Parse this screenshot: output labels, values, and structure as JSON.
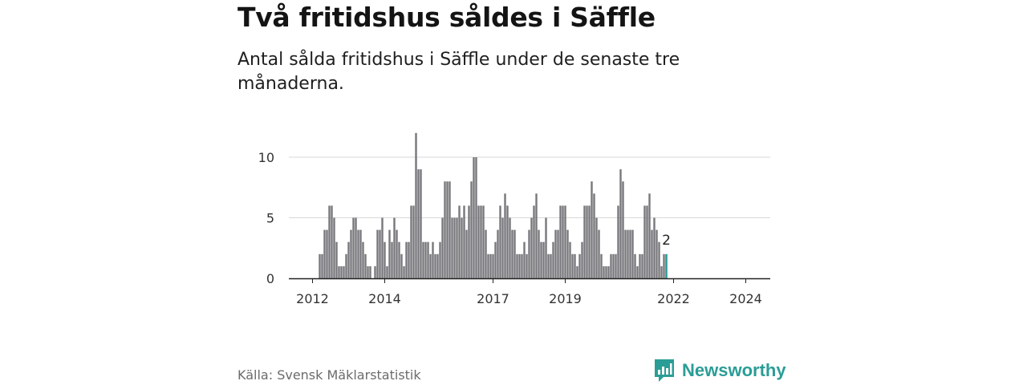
{
  "header": {
    "title": "Två fritidshus såldes i Säffle",
    "subtitle": "Antal sålda fritidshus i Säffle under de senaste tre månaderna."
  },
  "footer": {
    "source": "Källa: Svensk Mäklarstatistik",
    "brand": "Newsworthy"
  },
  "colors": {
    "bar": "#77777c",
    "highlight": "#2a9d96",
    "grid": "#d9d9d9",
    "axis": "#222222"
  },
  "chart_data": {
    "type": "bar",
    "title": "Antal sålda fritidshus i Säffle",
    "xlabel": "",
    "ylabel": "",
    "ylim": [
      0,
      12
    ],
    "yticks": [
      0,
      5,
      10
    ],
    "xtick_labels": [
      "2012",
      "2014",
      "2017",
      "2019",
      "2022",
      "2024"
    ],
    "xtick_periods": [
      0,
      30,
      75,
      105,
      150,
      180
    ],
    "first_bar_period": 3,
    "values": [
      2,
      2,
      4,
      4,
      6,
      6,
      5,
      3,
      1,
      1,
      1,
      2,
      3,
      4,
      5,
      5,
      4,
      4,
      3,
      2,
      1,
      1,
      0,
      1,
      4,
      4,
      5,
      3,
      1,
      4,
      3,
      5,
      4,
      3,
      2,
      1,
      3,
      3,
      6,
      6,
      12,
      9,
      9,
      3,
      3,
      3,
      2,
      3,
      2,
      2,
      3,
      5,
      8,
      8,
      8,
      5,
      5,
      5,
      6,
      5,
      6,
      4,
      6,
      8,
      10,
      10,
      6,
      6,
      6,
      4,
      2,
      2,
      2,
      3,
      4,
      6,
      5,
      7,
      6,
      5,
      4,
      4,
      2,
      2,
      2,
      3,
      2,
      4,
      5,
      6,
      7,
      4,
      3,
      3,
      5,
      2,
      2,
      3,
      4,
      4,
      6,
      6,
      6,
      4,
      3,
      2,
      2,
      1,
      2,
      3,
      6,
      6,
      6,
      8,
      7,
      5,
      4,
      2,
      1,
      1,
      1,
      2,
      2,
      2,
      6,
      9,
      8,
      4,
      4,
      4,
      4,
      2,
      1,
      2,
      2,
      6,
      6,
      7,
      4,
      5,
      4,
      3,
      1,
      2
    ],
    "highlight": {
      "label": "2",
      "value": 2
    }
  }
}
